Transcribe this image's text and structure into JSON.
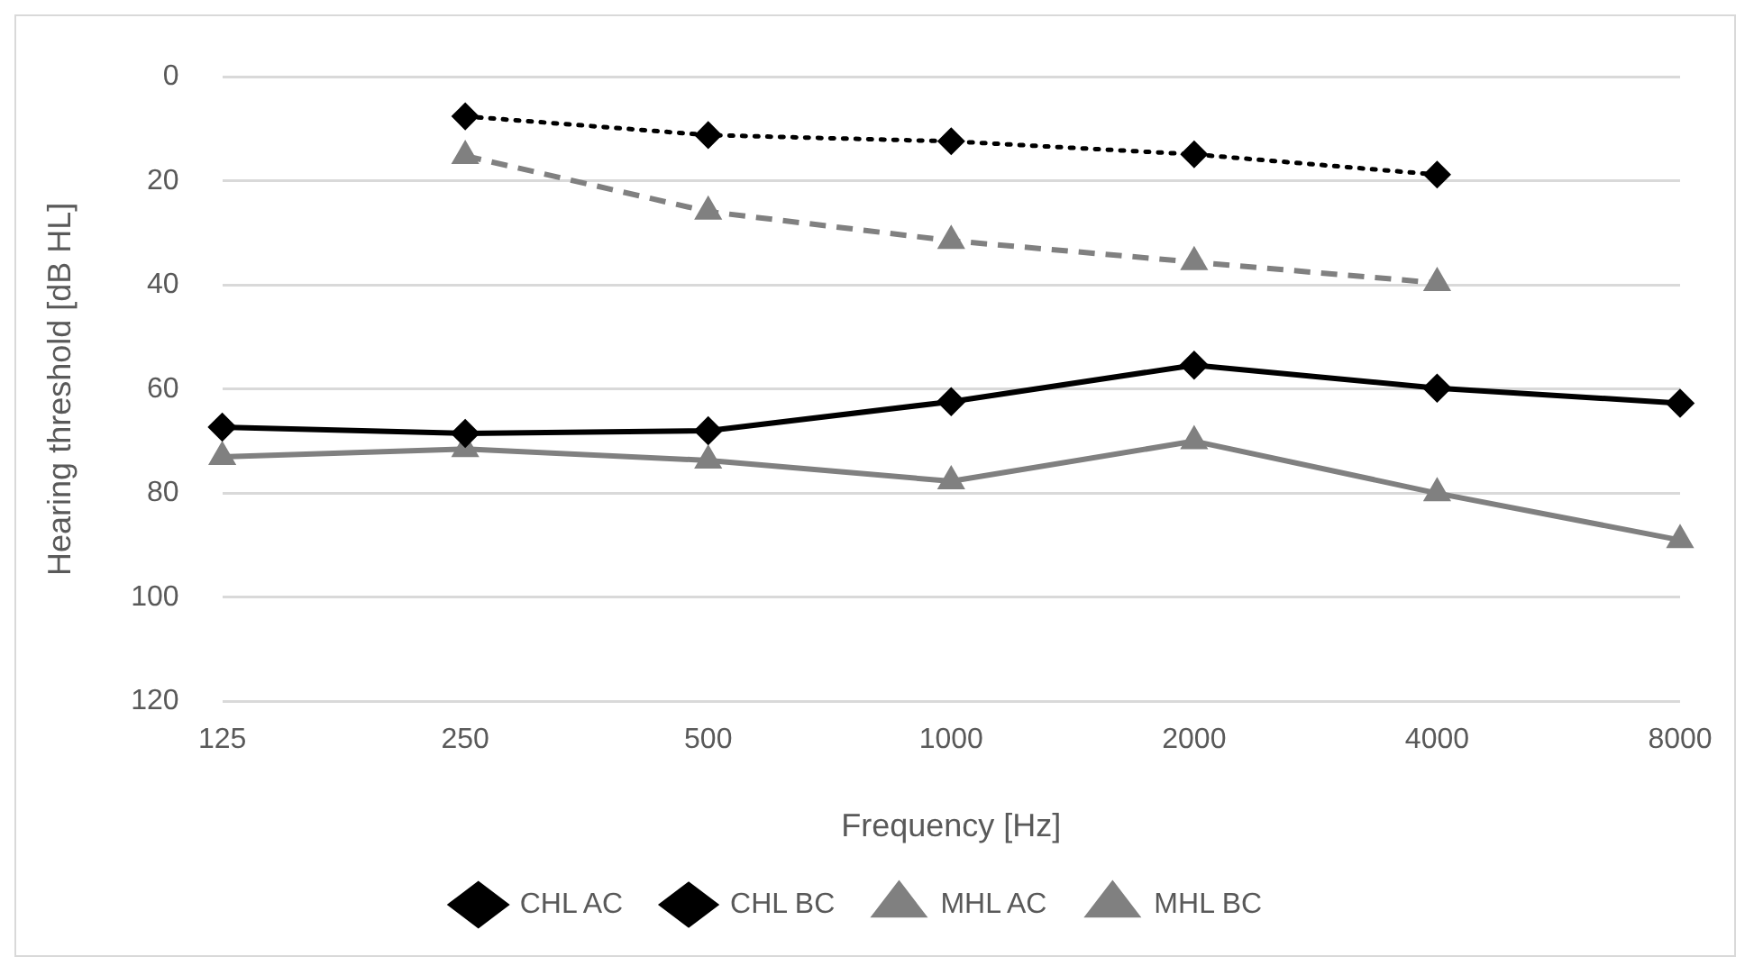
{
  "chart_data": {
    "type": "line",
    "xlabel": "Frequency [Hz]",
    "ylabel": "Hearing threshold [dB HL]",
    "categories": [
      "125",
      "250",
      "500",
      "1000",
      "2000",
      "4000",
      "8000"
    ],
    "ylim": [
      120,
      0
    ],
    "yticks": [
      0,
      20,
      40,
      60,
      80,
      100,
      120
    ],
    "grid": "y",
    "legend": "bottom",
    "series": [
      {
        "name": "CHL AC",
        "color": "#000000",
        "marker": "diamond",
        "line_style": "solid",
        "values": [
          67.3,
          68.5,
          68,
          62.4,
          55.4,
          59.8,
          62.7
        ]
      },
      {
        "name": "CHL BC",
        "color": "#000000",
        "marker": "diamond",
        "line_style": "dotted",
        "values": [
          null,
          7.6,
          11.2,
          12.4,
          14.9,
          18.8,
          null
        ]
      },
      {
        "name": "MHL AC",
        "color": "#808080",
        "marker": "triangle",
        "line_style": "solid",
        "values": [
          73,
          71.5,
          73.7,
          77.7,
          70,
          80,
          89
        ]
      },
      {
        "name": "MHL BC",
        "color": "#808080",
        "marker": "triangle",
        "line_style": "dashed",
        "values": [
          null,
          15.2,
          25.9,
          31.5,
          35.6,
          39.6,
          null
        ]
      }
    ]
  }
}
